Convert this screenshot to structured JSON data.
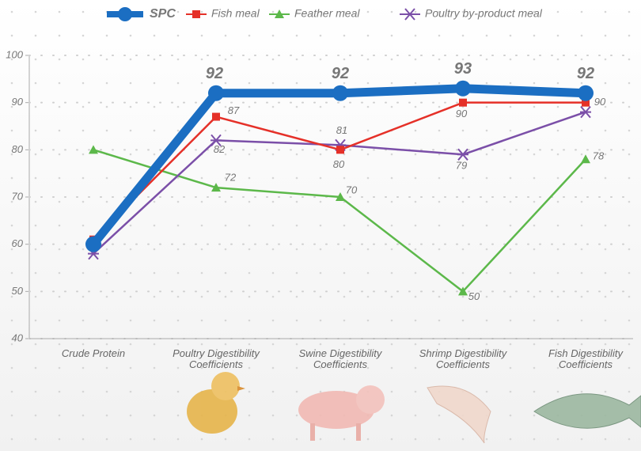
{
  "chart_data": {
    "type": "line",
    "categories": [
      "Crude Protein",
      "Poultry Digestibility Coefficients",
      "Swine Digestibility Coefficients",
      "Shrimp Digestibility Coefficients",
      "Fish Digestibility Coefficients"
    ],
    "series": [
      {
        "name": "SPC",
        "color": "#1b6ec2",
        "marker": "circle",
        "values": [
          60,
          92,
          92,
          93,
          92
        ],
        "value_labels": [
          null,
          "92",
          "92",
          "93",
          "92"
        ]
      },
      {
        "name": "Fish meal",
        "color": "#e53028",
        "marker": "square",
        "values": [
          61,
          87,
          80,
          90,
          90
        ],
        "value_labels": [
          null,
          "87",
          "80",
          "90",
          "90"
        ]
      },
      {
        "name": "Feather meal",
        "color": "#5cb84a",
        "marker": "triangle",
        "values": [
          80,
          72,
          70,
          50,
          78
        ],
        "value_labels": [
          null,
          "72",
          "70",
          "50",
          "78"
        ]
      },
      {
        "name": "Poultry by-product meal",
        "color": "#7b4fa8",
        "marker": "x",
        "values": [
          58,
          82,
          81,
          79,
          88
        ],
        "value_labels": [
          null,
          "82",
          "81",
          "79",
          null
        ]
      }
    ],
    "ylim": [
      40,
      100
    ],
    "yticks": [
      40,
      50,
      60,
      70,
      80,
      90,
      100
    ],
    "grid": "dotted"
  }
}
